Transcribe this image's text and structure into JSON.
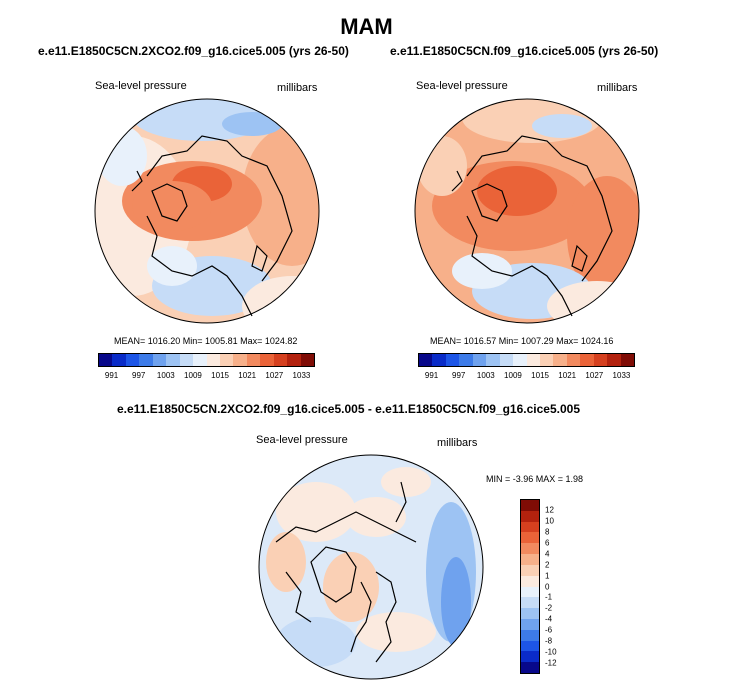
{
  "figure": {
    "title": "MAM"
  },
  "panels": [
    {
      "title": "e.e11.E1850C5CN.2XCO2.f09_g16.cice5.005 (yrs 26-50)",
      "left_label": "Sea-level pressure",
      "right_label": "millibars",
      "stats": "MEAN= 1016.20   Min= 1005.81   Max= 1024.82",
      "stat_values": {
        "mean": 1016.2,
        "min": 1005.81,
        "max": 1024.82
      }
    },
    {
      "title": "e.e11.E1850C5CN.f09_g16.cice5.005 (yrs 26-50)",
      "left_label": "Sea-level pressure",
      "right_label": "millibars",
      "stats": "MEAN= 1016.57   Min= 1007.29   Max= 1024.16",
      "stat_values": {
        "mean": 1016.57,
        "min": 1007.29,
        "max": 1024.16
      }
    },
    {
      "title": "e.e11.E1850C5CN.2XCO2.f09_g16.cice5.005 - e.e11.E1850C5CN.f09_g16.cice5.005",
      "left_label": "Sea-level pressure",
      "right_label": "millibars",
      "stats": "MIN =  -3.96 MAX =   1.98",
      "stat_values": {
        "min": -3.96,
        "max": 1.98
      }
    }
  ],
  "abs_colorbar": {
    "colors": [
      "#08088a",
      "#0a2bc8",
      "#1d55e6",
      "#3d7be8",
      "#6fa2ee",
      "#9dc3f3",
      "#c6dcf7",
      "#e8f1fb",
      "#fbeadf",
      "#fad0b5",
      "#f7b08a",
      "#f28a5f",
      "#ea6338",
      "#d5401f",
      "#b3220e",
      "#7f0c05"
    ],
    "tick_labels": [
      "991",
      "997",
      "1003",
      "1009",
      "1015",
      "1021",
      "1027",
      "1033"
    ]
  },
  "diff_colorbar": {
    "colors": [
      "#7f0c05",
      "#b3220e",
      "#d5401f",
      "#ea6338",
      "#f28a5f",
      "#f7b08a",
      "#fad0b5",
      "#fbeadf",
      "#e8f1fb",
      "#c6dcf7",
      "#9dc3f3",
      "#6fa2ee",
      "#3d7be8",
      "#1d55e6",
      "#0a2bc8",
      "#08088a"
    ],
    "tick_labels": [
      "12",
      "10",
      "8",
      "6",
      "4",
      "2",
      "1",
      "0",
      "-1",
      "-2",
      "-4",
      "-6",
      "-8",
      "-10",
      "-12"
    ]
  },
  "map_colors": {
    "ocean_base": "#fbeadf",
    "diff_base": "#dce9f8",
    "coast": "#000000"
  }
}
